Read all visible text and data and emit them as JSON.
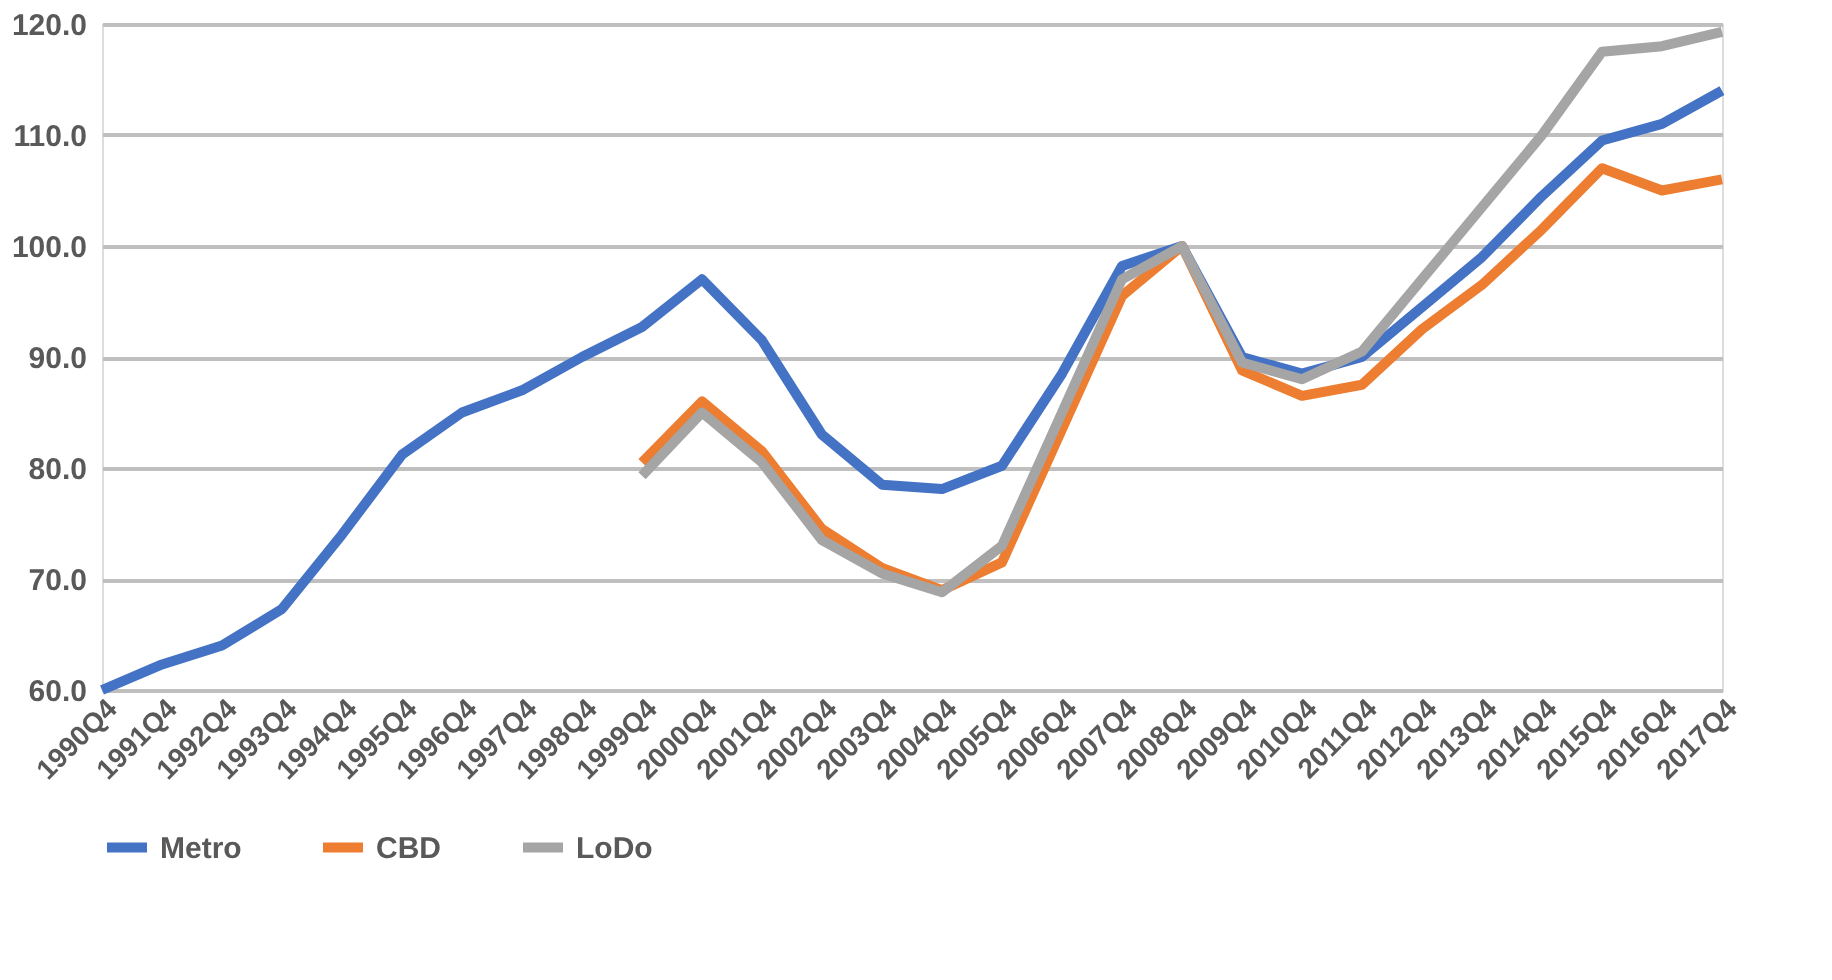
{
  "chart_data": {
    "type": "line",
    "categories": [
      "1990Q4",
      "1991Q4",
      "1992Q4",
      "1993Q4",
      "1994Q4",
      "1995Q4",
      "1996Q4",
      "1997Q4",
      "1998Q4",
      "1999Q4",
      "2000Q4",
      "2001Q4",
      "2002Q4",
      "2003Q4",
      "2004Q4",
      "2005Q4",
      "2006Q4",
      "2007Q4",
      "2008Q4",
      "2009Q4",
      "2010Q4",
      "2011Q4",
      "2012Q4",
      "2013Q4",
      "2014Q4",
      "2015Q4",
      "2016Q4",
      "2017Q4"
    ],
    "series": [
      {
        "name": "Metro",
        "color": "#4472c4",
        "values": [
          60.0,
          62.3,
          64.0,
          67.3,
          74.0,
          81.2,
          85.0,
          87.0,
          90.0,
          92.7,
          97.0,
          91.5,
          83.0,
          78.5,
          78.1,
          80.2,
          88.5,
          98.2,
          100.0,
          90.0,
          88.5,
          90.0,
          94.5,
          99.0,
          104.5,
          109.5,
          111.0,
          114.0
        ]
      },
      {
        "name": "CBD",
        "color": "#ed7d31",
        "values": [
          null,
          null,
          null,
          null,
          null,
          null,
          null,
          null,
          null,
          80.5,
          86.0,
          81.5,
          74.5,
          71.0,
          69.0,
          71.5,
          83.5,
          95.5,
          100.0,
          88.8,
          86.5,
          87.5,
          92.5,
          96.5,
          101.5,
          107.0,
          105.0,
          106.0
        ]
      },
      {
        "name": "LoDo",
        "color": "#a5a5a5",
        "values": [
          null,
          null,
          null,
          null,
          null,
          null,
          null,
          null,
          null,
          79.3,
          85.0,
          80.5,
          73.5,
          70.5,
          68.8,
          73.0,
          85.0,
          97.0,
          100.0,
          89.5,
          88.0,
          90.5,
          97.0,
          103.5,
          110.0,
          117.5,
          118.0,
          119.3
        ]
      }
    ],
    "ylim": [
      60,
      120
    ],
    "yticks": [
      {
        "value": 60,
        "label": "60.0"
      },
      {
        "value": 70,
        "label": "70.0"
      },
      {
        "value": 80,
        "label": "80.0"
      },
      {
        "value": 90,
        "label": "90.0"
      },
      {
        "value": 100,
        "label": "100.0"
      },
      {
        "value": 110,
        "label": "110.0"
      },
      {
        "value": 120,
        "label": "120.0"
      }
    ],
    "grid": "y",
    "legend": "bottom",
    "marker": "none",
    "line_style": "solid"
  }
}
